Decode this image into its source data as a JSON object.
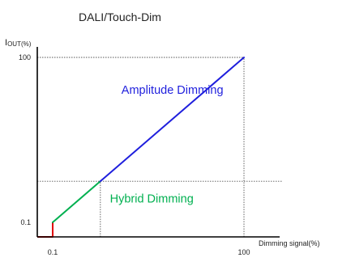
{
  "chart_data": {
    "type": "line",
    "title": "DALI/Touch-Dim",
    "xlabel": "Dimming signal(%)",
    "ylabel": "I",
    "ylabel_sub": "OUT(%)",
    "xlim": [
      0,
      100
    ],
    "ylim": [
      0,
      100
    ],
    "x_ticks": [
      {
        "value": 0.1,
        "label": "0.1"
      },
      {
        "value": 100,
        "label": "100"
      }
    ],
    "y_ticks": [
      {
        "value": 0.1,
        "label": "0.1"
      },
      {
        "value": 100,
        "label": "100"
      }
    ],
    "series": [
      {
        "color": "#e00000",
        "points": [
          [
            0.1,
            0
          ],
          [
            0.1,
            0.1
          ]
        ]
      },
      {
        "color": "#00b050",
        "points": [
          [
            0.1,
            0.1
          ],
          [
            25,
            25
          ]
        ]
      },
      {
        "color": "#1f1fdd",
        "points": [
          [
            25,
            25
          ],
          [
            100,
            100
          ]
        ]
      }
    ],
    "base_segment": {
      "color": "#e00000",
      "points": [
        [
          0,
          0
        ],
        [
          0.1,
          0
        ]
      ]
    },
    "guides": [
      {
        "orientation": "horizontal",
        "value": 100,
        "from": 0,
        "to": 100
      },
      {
        "orientation": "vertical",
        "value": 100,
        "from": 0,
        "to": 100
      },
      {
        "orientation": "horizontal",
        "value": 25,
        "from": 0,
        "to": 115
      },
      {
        "orientation": "vertical",
        "value": 25,
        "from": 0,
        "to": 25
      },
      {
        "orientation": "vertical",
        "value": 0.1,
        "from": 0,
        "to": 0.1
      }
    ],
    "annotations": [
      {
        "text": "Amplitude Dimming",
        "x": 36,
        "y": 78,
        "color": "#1f1fdd"
      },
      {
        "text": "Hybrid Dimming",
        "x": 30,
        "y": 12,
        "color": "#00b050"
      }
    ],
    "axis_color": "#000000",
    "guide_color": "#555555",
    "grid": false
  }
}
